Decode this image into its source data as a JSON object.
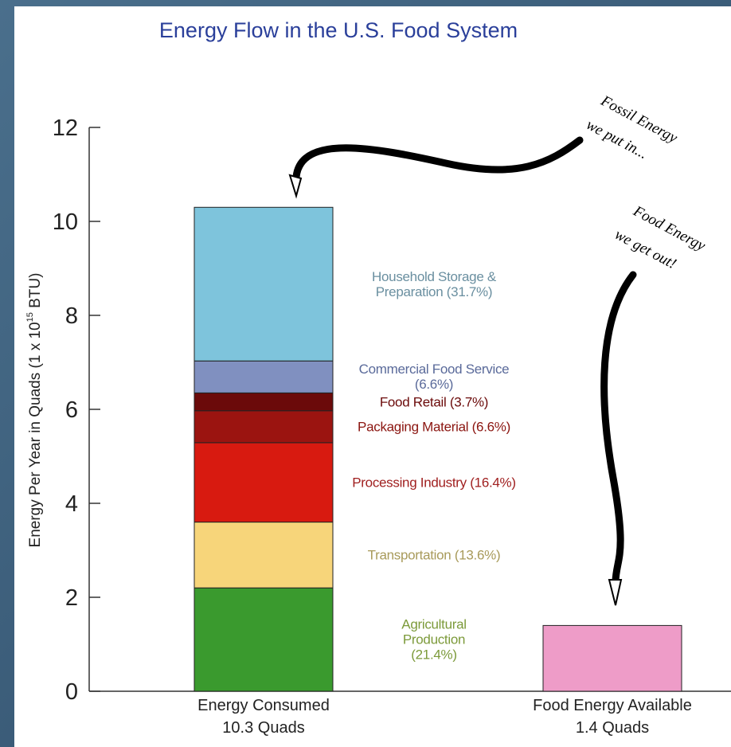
{
  "chart_data": {
    "type": "stacked_bar",
    "title": "Energy Flow in the U.S. Food System",
    "ylabel": {
      "text": "Energy Per Year in Quads (1 x 10",
      "sup": "15",
      "tail": " BTU)"
    },
    "categories": [
      "Energy Consumed",
      "Food Energy Available"
    ],
    "category_totals": [
      "10.3 Quads",
      "1.4 Quads"
    ],
    "ylim": [
      0,
      12
    ],
    "yticks": [
      0,
      2,
      4,
      6,
      8,
      10,
      12
    ],
    "series": [
      {
        "name": "Agricultural Production",
        "share_label": "(21.4%)",
        "color": "#3a9a2e",
        "label_color": "#7c9a3a",
        "values": [
          2.2,
          null
        ]
      },
      {
        "name": "Transportation",
        "share_label": "(13.6%)",
        "color": "#f7d57a",
        "label_color": "#a89a5a",
        "values": [
          1.4,
          null
        ]
      },
      {
        "name": "Processing Industry",
        "share_label": "(16.4%)",
        "color": "#d81a10",
        "label_color": "#a02020",
        "values": [
          1.69,
          null
        ]
      },
      {
        "name": "Packaging Material",
        "share_label": "(6.6%)",
        "color": "#9b1410",
        "label_color": "#8b1510",
        "values": [
          0.68,
          null
        ]
      },
      {
        "name": "Food Retail",
        "share_label": "(3.7%)",
        "color": "#6b0a0a",
        "label_color": "#6b0a0a",
        "values": [
          0.38,
          null
        ]
      },
      {
        "name": "Commercial Food Service",
        "share_label": "(6.6%)",
        "color": "#8090c0",
        "label_color": "#5a6a9a",
        "values": [
          0.68,
          null
        ]
      },
      {
        "name": "Household Storage & Preparation",
        "share_label": "(31.7%)",
        "color": "#7ec4dc",
        "label_color": "#6a8fa0",
        "values": [
          3.27,
          null
        ]
      },
      {
        "color": "#ee9cc8",
        "values": [
          null,
          1.4
        ]
      }
    ],
    "annotations": [
      {
        "lines": [
          "Fossil Energy",
          "we put in..."
        ]
      },
      {
        "lines": [
          "Food Energy",
          "we get out!"
        ]
      }
    ]
  }
}
